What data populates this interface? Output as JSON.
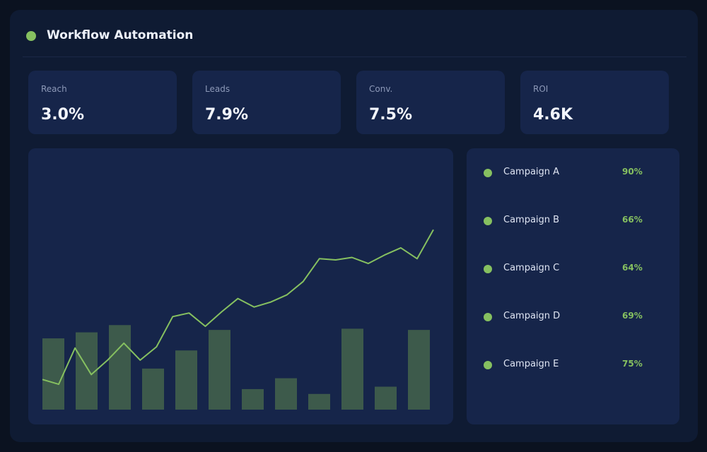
{
  "header": {
    "title": "Workflow Automation"
  },
  "kpis": [
    {
      "label": "Reach",
      "value": "3.0%"
    },
    {
      "label": "Leads",
      "value": "7.9%"
    },
    {
      "label": "Conv.",
      "value": "7.5%"
    },
    {
      "label": "ROI",
      "value": "4.6K"
    }
  ],
  "campaigns": [
    {
      "name": "Campaign A",
      "value": "90%"
    },
    {
      "name": "Campaign B",
      "value": "66%"
    },
    {
      "name": "Campaign C",
      "value": "64%"
    },
    {
      "name": "Campaign D",
      "value": "69%"
    },
    {
      "name": "Campaign E",
      "value": "75%"
    }
  ],
  "colors": {
    "accent": "#86c060",
    "bar": "#3d5a4b",
    "panel": "#16254a",
    "background": "#0f1b33"
  },
  "chart_data": {
    "type": "bar",
    "bars": [
      {
        "value": 59
      },
      {
        "value": 64
      },
      {
        "value": 70
      },
      {
        "value": 34
      },
      {
        "value": 49
      },
      {
        "value": 66
      },
      {
        "value": 17
      },
      {
        "value": 26
      },
      {
        "value": 13
      },
      {
        "value": 67
      },
      {
        "value": 19
      },
      {
        "value": 66
      }
    ],
    "line": {
      "values": [
        25,
        21,
        51,
        29,
        41,
        55,
        41,
        52,
        77,
        80,
        69,
        81,
        92,
        85,
        89,
        95,
        106,
        125,
        124,
        126,
        121,
        128,
        134,
        125,
        149
      ]
    },
    "ylim": [
      0,
      160
    ],
    "grid": false
  }
}
